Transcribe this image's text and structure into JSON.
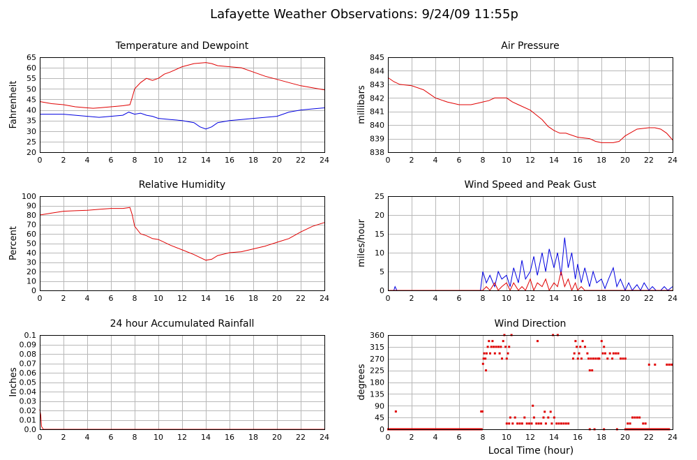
{
  "page_title": "Lafayette Weather Observations: 9/24/09 11:55p",
  "shared_xlabel": "Local Time (hour)",
  "colors": {
    "primary": "#e00000",
    "secondary": "#0000e0",
    "grid": "#b8b8b8",
    "frame": "#000000"
  },
  "chart_data": [
    {
      "id": "temp",
      "type": "line",
      "title": "Temperature and Dewpoint",
      "xlabel": "",
      "ylabel": "Fahrenheit",
      "xlim": [
        0,
        24
      ],
      "ylim": [
        20,
        65
      ],
      "xticks": [
        0,
        2,
        4,
        6,
        8,
        10,
        12,
        14,
        16,
        18,
        20,
        22,
        24
      ],
      "yticks": [
        20,
        25,
        30,
        35,
        40,
        45,
        50,
        55,
        60,
        65
      ],
      "grid": true,
      "series": [
        {
          "color": "#e00000",
          "x": [
            0,
            1,
            2,
            3,
            4,
            4.5,
            5,
            6,
            7,
            7.6,
            7.8,
            8,
            8.5,
            9,
            9.5,
            10,
            10.5,
            11,
            12,
            13,
            14,
            14.5,
            15,
            16,
            17,
            18,
            19,
            20,
            21,
            22,
            23,
            24
          ],
          "y": [
            44,
            43,
            42.5,
            41.5,
            41,
            40.8,
            41,
            41.5,
            42,
            42.5,
            46,
            50,
            53,
            55,
            54,
            55,
            57,
            58,
            60.5,
            62,
            62.5,
            62,
            61,
            60.5,
            60,
            58,
            56,
            54.5,
            53,
            51.5,
            50.5,
            49.5
          ]
        },
        {
          "color": "#0000e0",
          "x": [
            0,
            1,
            2,
            3,
            4,
            5,
            6,
            7,
            7.5,
            8,
            8.5,
            9,
            9.5,
            10,
            11,
            12,
            13,
            13.5,
            14,
            14.5,
            15,
            16,
            17,
            18,
            19,
            20,
            21,
            22,
            23,
            24
          ],
          "y": [
            38,
            38,
            38,
            37.5,
            37,
            36.5,
            37,
            37.5,
            39,
            38,
            38.5,
            37.5,
            37,
            36,
            35.5,
            35,
            34,
            32,
            31,
            32,
            34,
            35,
            35.5,
            36,
            36.5,
            37,
            39,
            40,
            40.5,
            41
          ]
        }
      ]
    },
    {
      "id": "pressure",
      "type": "line",
      "title": "Air Pressure",
      "xlabel": "",
      "ylabel": "millibars",
      "xlim": [
        0,
        24
      ],
      "ylim": [
        838,
        845
      ],
      "xticks": [
        0,
        2,
        4,
        6,
        8,
        10,
        12,
        14,
        16,
        18,
        20,
        22,
        24
      ],
      "yticks": [
        838,
        839,
        840,
        841,
        842,
        843,
        844,
        845
      ],
      "grid": true,
      "series": [
        {
          "color": "#e00000",
          "x": [
            0,
            0.5,
            1,
            2,
            3,
            4,
            5,
            6,
            7,
            7.5,
            8,
            8.5,
            9,
            10,
            10.5,
            11,
            12,
            13,
            13.5,
            14,
            14.5,
            15,
            16,
            17,
            17.5,
            18,
            19,
            19.5,
            20,
            21,
            22,
            22.5,
            23,
            23.5,
            24
          ],
          "y": [
            843.5,
            843.2,
            843,
            842.9,
            842.6,
            842,
            841.7,
            841.5,
            841.5,
            841.6,
            841.7,
            841.8,
            842,
            842,
            841.7,
            841.5,
            841.1,
            840.4,
            839.9,
            839.6,
            839.4,
            839.4,
            839.1,
            839,
            838.8,
            838.7,
            838.7,
            838.8,
            839.2,
            839.7,
            839.8,
            839.8,
            839.7,
            839.4,
            838.9
          ]
        }
      ]
    },
    {
      "id": "humidity",
      "type": "line",
      "title": "Relative Humidity",
      "xlabel": "",
      "ylabel": "Percent",
      "xlim": [
        0,
        24
      ],
      "ylim": [
        0,
        100
      ],
      "xticks": [
        0,
        2,
        4,
        6,
        8,
        10,
        12,
        14,
        16,
        18,
        20,
        22,
        24
      ],
      "yticks": [
        0,
        10,
        20,
        30,
        40,
        50,
        60,
        70,
        80,
        90,
        100
      ],
      "grid": true,
      "series": [
        {
          "color": "#e00000",
          "x": [
            0,
            1,
            2,
            3,
            4,
            5,
            6,
            7,
            7.6,
            7.8,
            8,
            8.5,
            9,
            9.5,
            10,
            11,
            12,
            13,
            13.5,
            14,
            14.5,
            15,
            16,
            17,
            18,
            19,
            20,
            21,
            22,
            23,
            24
          ],
          "y": [
            80,
            82,
            84,
            84.5,
            85,
            86,
            87,
            87,
            88,
            80,
            68,
            60,
            58,
            55,
            54,
            48,
            43,
            38,
            35,
            32,
            33,
            37,
            40,
            41,
            44,
            47,
            51,
            55,
            62,
            68,
            72
          ]
        }
      ]
    },
    {
      "id": "wind",
      "type": "line",
      "title": "Wind Speed and Peak Gust",
      "xlabel": "",
      "ylabel": "miles/hour",
      "xlim": [
        0,
        24
      ],
      "ylim": [
        0,
        25
      ],
      "xticks": [
        0,
        2,
        4,
        6,
        8,
        10,
        12,
        14,
        16,
        18,
        20,
        22,
        24
      ],
      "yticks": [
        0,
        5,
        10,
        15,
        20,
        25
      ],
      "grid": true,
      "series": [
        {
          "color": "#0000e0",
          "x": [
            0,
            0.5,
            0.6,
            0.75,
            0.9,
            1,
            7.8,
            8,
            8.3,
            8.6,
            9,
            9.3,
            9.6,
            10,
            10.3,
            10.6,
            11,
            11.3,
            11.6,
            12,
            12.3,
            12.6,
            13,
            13.3,
            13.6,
            14,
            14.3,
            14.6,
            14.9,
            15.2,
            15.5,
            15.8,
            16,
            16.3,
            16.6,
            17,
            17.3,
            17.6,
            18,
            18.3,
            18.6,
            19,
            19.3,
            19.6,
            20,
            20.3,
            20.6,
            21,
            21.3,
            21.6,
            22,
            22.3,
            22.6,
            23,
            23.3,
            23.6,
            24
          ],
          "y": [
            0,
            0,
            1,
            0,
            0,
            0,
            0,
            5,
            2,
            4,
            1,
            5,
            3,
            4,
            1,
            6,
            2,
            8,
            3,
            5,
            9,
            4,
            10,
            5,
            11,
            6,
            10,
            4,
            14,
            6,
            10,
            3,
            7,
            2,
            6,
            1,
            5,
            2,
            3,
            0.5,
            3,
            6,
            1,
            3,
            0,
            2,
            0,
            1.5,
            0,
            2,
            0,
            1,
            0,
            0,
            1,
            0,
            1
          ]
        },
        {
          "color": "#e00000",
          "x": [
            0,
            8,
            8.3,
            8.6,
            9,
            9.3,
            9.6,
            10,
            10.3,
            10.6,
            11,
            11.3,
            11.6,
            12,
            12.3,
            12.6,
            13,
            13.3,
            13.6,
            14,
            14.3,
            14.6,
            14.9,
            15.2,
            15.5,
            15.8,
            16,
            16.3,
            16.6,
            17,
            24
          ],
          "y": [
            0,
            0,
            1,
            0,
            2,
            0,
            1,
            2,
            0,
            2,
            0,
            1,
            0,
            3,
            0,
            2,
            1,
            3,
            0,
            2,
            1,
            5,
            1,
            3,
            0,
            2,
            0,
            1,
            0,
            0,
            0
          ]
        }
      ]
    },
    {
      "id": "rain",
      "type": "line",
      "title": "24 hour Accumulated Rainfall",
      "xlabel": "",
      "ylabel": "Inches",
      "xlim": [
        0,
        24
      ],
      "ylim": [
        0,
        0.1
      ],
      "xticks": [
        0,
        2,
        4,
        6,
        8,
        10,
        12,
        14,
        16,
        18,
        20,
        22,
        24
      ],
      "yticks": [
        0.0,
        0.01,
        0.02,
        0.03,
        0.04,
        0.05,
        0.06,
        0.07,
        0.08,
        0.09,
        0.1
      ],
      "ytick_labels": [
        "0.0",
        "0.01",
        "0.02",
        "0.03",
        "0.04",
        "0.05",
        "0.06",
        "0.07",
        "0.08",
        "0.09",
        "0.1"
      ],
      "grid": true,
      "series": [
        {
          "color": "#e00000",
          "x": [
            0,
            0.08,
            0.15,
            0.3,
            24
          ],
          "y": [
            0.021,
            0.015,
            0.003,
            0,
            0
          ]
        }
      ]
    },
    {
      "id": "direction",
      "type": "scatter",
      "title": "Wind Direction",
      "xlabel": "Local Time (hour)",
      "ylabel": "degrees",
      "xlim": [
        0,
        24
      ],
      "ylim": [
        0,
        360
      ],
      "xticks": [
        0,
        2,
        4,
        6,
        8,
        10,
        12,
        14,
        16,
        18,
        20,
        22,
        24
      ],
      "yticks": [
        0,
        45,
        90,
        135,
        180,
        225,
        270,
        315,
        360
      ],
      "grid": true,
      "series": [
        {
          "color": "#e00000",
          "zero_runs": [
            [
              0,
              7.9
            ],
            [
              20.0,
              23.7
            ]
          ],
          "points": [
            [
              0.65,
              68
            ],
            [
              7.85,
              68
            ],
            [
              7.95,
              68
            ],
            [
              8.0,
              250
            ],
            [
              8.05,
              270
            ],
            [
              8.1,
              290
            ],
            [
              8.2,
              270
            ],
            [
              8.25,
              225
            ],
            [
              8.3,
              290
            ],
            [
              8.4,
              315
            ],
            [
              8.5,
              337
            ],
            [
              8.6,
              290
            ],
            [
              8.7,
              315
            ],
            [
              8.8,
              337
            ],
            [
              8.9,
              315
            ],
            [
              9.0,
              290
            ],
            [
              9.1,
              315
            ],
            [
              9.3,
              315
            ],
            [
              9.4,
              290
            ],
            [
              9.5,
              315
            ],
            [
              9.6,
              270
            ],
            [
              9.7,
              337
            ],
            [
              9.8,
              360
            ],
            [
              9.9,
              315
            ],
            [
              10.0,
              270
            ],
            [
              10.1,
              290
            ],
            [
              10.2,
              315
            ],
            [
              10.4,
              360
            ],
            [
              10.0,
              22
            ],
            [
              10.2,
              22
            ],
            [
              10.3,
              45
            ],
            [
              10.5,
              22
            ],
            [
              10.7,
              45
            ],
            [
              10.9,
              22
            ],
            [
              11.1,
              22
            ],
            [
              11.3,
              22
            ],
            [
              11.5,
              45
            ],
            [
              11.7,
              22
            ],
            [
              11.9,
              22
            ],
            [
              12.1,
              22
            ],
            [
              12.2,
              90
            ],
            [
              12.3,
              45
            ],
            [
              12.5,
              22
            ],
            [
              12.7,
              22
            ],
            [
              12.6,
              337
            ],
            [
              12.9,
              22
            ],
            [
              13.1,
              45
            ],
            [
              13.2,
              67
            ],
            [
              13.3,
              22
            ],
            [
              13.5,
              45
            ],
            [
              13.7,
              67
            ],
            [
              13.8,
              22
            ],
            [
              14.0,
              45
            ],
            [
              14.2,
              22
            ],
            [
              14.4,
              22
            ],
            [
              14.6,
              22
            ],
            [
              14.8,
              22
            ],
            [
              15.0,
              22
            ],
            [
              15.2,
              22
            ],
            [
              13.9,
              360
            ],
            [
              14.3,
              360
            ],
            [
              15.6,
              270
            ],
            [
              15.7,
              290
            ],
            [
              15.8,
              337
            ],
            [
              15.9,
              315
            ],
            [
              16.0,
              270
            ],
            [
              16.1,
              290
            ],
            [
              16.2,
              315
            ],
            [
              16.3,
              270
            ],
            [
              16.4,
              337
            ],
            [
              16.6,
              315
            ],
            [
              16.8,
              290
            ],
            [
              16.9,
              270
            ],
            [
              17.0,
              225
            ],
            [
              17.1,
              270
            ],
            [
              17.2,
              225
            ],
            [
              17.3,
              270
            ],
            [
              17.5,
              270
            ],
            [
              17.7,
              270
            ],
            [
              17.8,
              270
            ],
            [
              18.0,
              337
            ],
            [
              18.1,
              290
            ],
            [
              18.2,
              315
            ],
            [
              18.3,
              290
            ],
            [
              18.5,
              270
            ],
            [
              18.7,
              290
            ],
            [
              18.9,
              270
            ],
            [
              19.0,
              290
            ],
            [
              19.2,
              290
            ],
            [
              19.4,
              290
            ],
            [
              19.6,
              270
            ],
            [
              19.8,
              270
            ],
            [
              20.0,
              270
            ],
            [
              20.2,
              22
            ],
            [
              20.4,
              22
            ],
            [
              20.6,
              45
            ],
            [
              20.8,
              45
            ],
            [
              21.0,
              45
            ],
            [
              21.2,
              45
            ],
            [
              21.5,
              22
            ],
            [
              21.7,
              22
            ],
            [
              22.0,
              247
            ],
            [
              22.5,
              247
            ],
            [
              23.5,
              247
            ],
            [
              23.7,
              247
            ],
            [
              23.9,
              247
            ],
            [
              17.0,
              0
            ],
            [
              17.4,
              0
            ],
            [
              18.2,
              0
            ],
            [
              19.3,
              0
            ]
          ]
        }
      ]
    }
  ]
}
